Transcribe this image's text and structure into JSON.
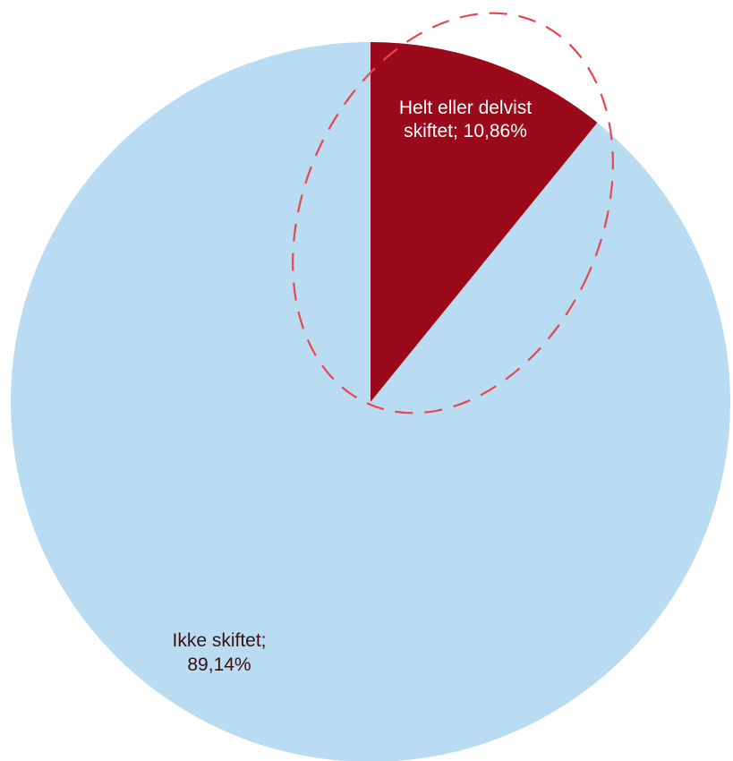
{
  "chart_data": {
    "type": "pie",
    "title": "",
    "slices": [
      {
        "name": "Helt eller delvist skiftet",
        "value": 10.86,
        "label_lines": [
          "Helt eller delvist",
          "skiftet; 10,86%"
        ],
        "color": "#9b0a1a",
        "label_color": "#ffffff",
        "highlighted": true
      },
      {
        "name": "Ikke skiftet",
        "value": 89.14,
        "label_lines": [
          "Ikke skiftet;",
          "89,14%"
        ],
        "color": "#b9dcf2",
        "label_color": "#3a1010",
        "highlighted": false
      }
    ],
    "start_angle": "12 o'clock",
    "direction": "clockwise",
    "highlight_color": "#e8454f"
  }
}
